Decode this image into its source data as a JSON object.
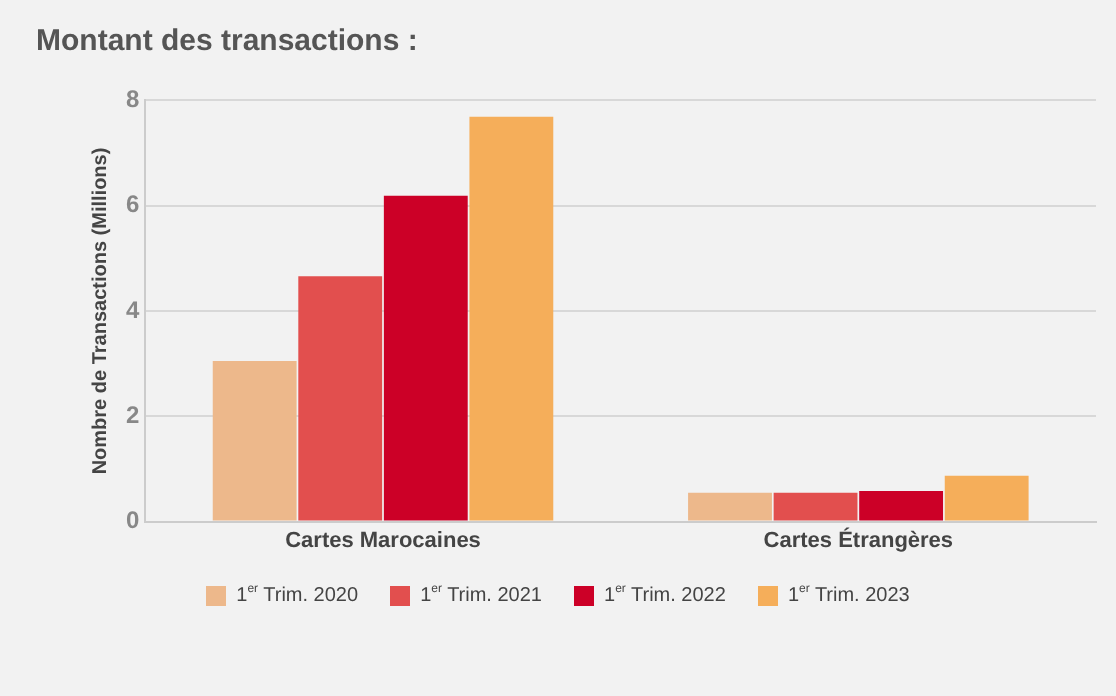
{
  "chart_data": {
    "type": "bar",
    "title": "Montant des transactions :",
    "ylabel": "Nombre de Transactions (Millions)",
    "categories": [
      "Cartes Marocaines",
      "Cartes Étrangères"
    ],
    "series": [
      {
        "name": "1$^{er}$ Trim. 2020",
        "color": "#edb88b",
        "values": [
          3.05,
          0.55
        ]
      },
      {
        "name": "1$^{er}$ Trim. 2021",
        "color": "#e24f4e",
        "values": [
          4.66,
          0.55
        ]
      },
      {
        "name": "1$^{er}$ Trim. 2022",
        "color": "#cc0027",
        "values": [
          6.19,
          0.58
        ]
      },
      {
        "name": "1$^{er}$ Trim. 2023",
        "color": "#f5ae5a",
        "values": [
          7.69,
          0.87
        ]
      }
    ],
    "ylim": [
      0,
      8
    ],
    "yticks": [
      0,
      2,
      4,
      6,
      8
    ],
    "grid": "y",
    "legend": "bottom"
  }
}
